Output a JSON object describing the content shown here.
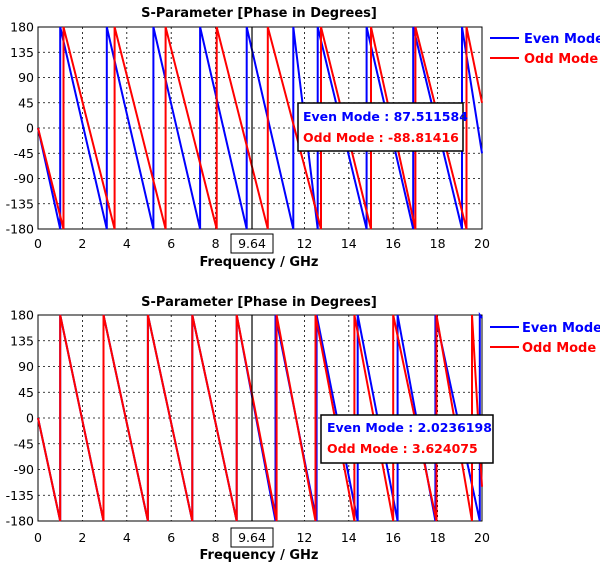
{
  "chart_data": [
    {
      "type": "line",
      "title": "S-Parameter [Phase in Degrees]",
      "xlabel": "Frequency / GHz",
      "ylabel": "",
      "xlim": [
        0,
        20
      ],
      "ylim": [
        -180,
        180
      ],
      "x_ticks": [
        "0",
        "2",
        "4",
        "6",
        "8",
        "9.64",
        "12",
        "14",
        "16",
        "18",
        "20"
      ],
      "y_ticks": [
        "180",
        "135",
        "90",
        "45",
        "0",
        "-45",
        "-90",
        "-135",
        "-180"
      ],
      "grid": true,
      "legend_position": "top-right outside",
      "marker": {
        "x": 9.64,
        "label": "9.64"
      },
      "series": [
        {
          "name": "Even Mode",
          "color": "#0000ff",
          "wraps": [
            1.0,
            3.1,
            5.2,
            7.3,
            9.4,
            11.5,
            12.6,
            14.8,
            16.9,
            19.1
          ],
          "end_value": -45
        },
        {
          "name": "Odd Mode",
          "color": "#ff0000",
          "wraps": [
            1.15,
            3.45,
            5.75,
            8.05,
            10.35,
            12.75,
            15.0,
            17.0,
            19.3
          ],
          "end_value": 45
        }
      ],
      "annotation": {
        "even": "Even Mode : 87.511584",
        "odd": "Odd Mode : -88.81416"
      }
    },
    {
      "type": "line",
      "title": "S-Parameter [Phase in Degrees]",
      "xlabel": "Frequency / GHz",
      "ylabel": "",
      "xlim": [
        0,
        20
      ],
      "ylim": [
        -180,
        180
      ],
      "x_ticks": [
        "0",
        "2",
        "4",
        "6",
        "8",
        "9.64",
        "12",
        "14",
        "16",
        "18",
        "20"
      ],
      "y_ticks": [
        "180",
        "135",
        "90",
        "45",
        "0",
        "-45",
        "-90",
        "-135",
        "-180"
      ],
      "grid": true,
      "legend_position": "top-right outside",
      "marker": {
        "x": 9.64,
        "label": "9.64"
      },
      "series": [
        {
          "name": "Even Mode",
          "color": "#0000ff",
          "wraps": [
            1.0,
            2.95,
            4.95,
            6.95,
            8.95,
            10.7,
            12.55,
            14.4,
            16.2,
            17.9,
            19.9
          ],
          "end_value": 175
        },
        {
          "name": "Odd Mode",
          "color": "#ff0000",
          "wraps": [
            1.0,
            2.95,
            4.95,
            6.95,
            8.95,
            10.75,
            12.5,
            14.25,
            16.0,
            17.95,
            19.55
          ],
          "end_value": -120
        }
      ],
      "annotation": {
        "even": "Even Mode : 2.0236198",
        "odd": "Odd Mode : 3.624075"
      }
    }
  ]
}
